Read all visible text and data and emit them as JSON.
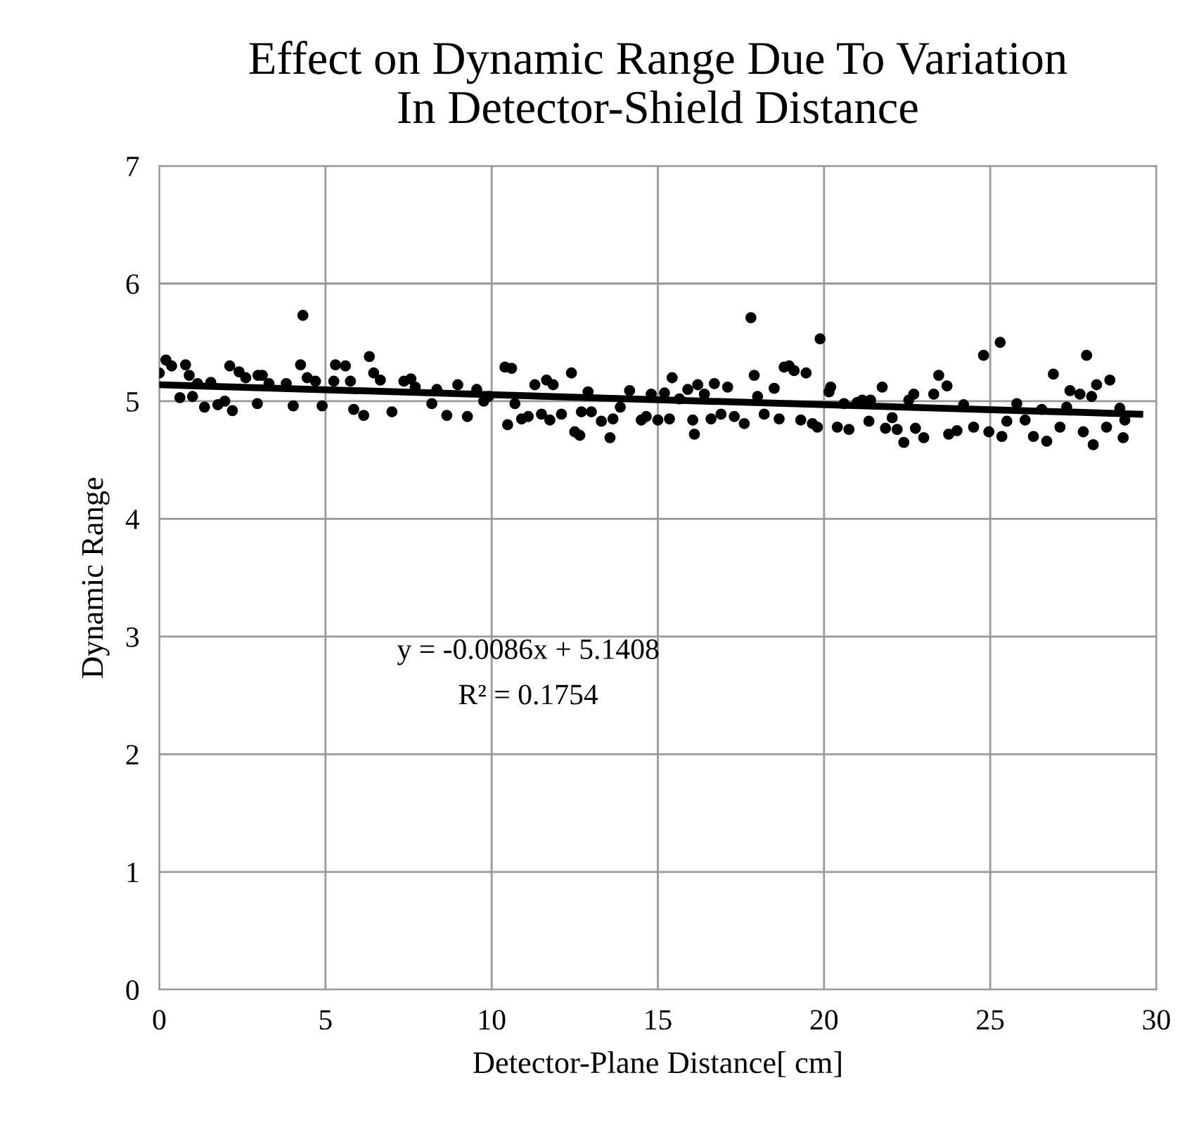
{
  "chart_data": {
    "type": "scatter",
    "title": "Effect on Dynamic Range Due To Variation\nIn Detector-Shield Distance",
    "xlabel": "Detector-Plane Distance[ cm]",
    "ylabel": "Dynamic Range",
    "xlim": [
      0,
      30
    ],
    "xticks": [
      0,
      5,
      10,
      15,
      20,
      25,
      30
    ],
    "ylim": [
      0,
      7
    ],
    "yticks": [
      0,
      1,
      2,
      3,
      4,
      5,
      6,
      7
    ],
    "grid": true,
    "marker": "circle",
    "annotations": [
      "y = -0.0086x + 5.1408",
      "R² = 0.1754"
    ],
    "series": [
      {
        "color": "#000000",
        "x": [
          0,
          0.2,
          0.37,
          0.62,
          0.79,
          0.9,
          1.0,
          1.15,
          1.36,
          1.55,
          1.76,
          1.97,
          2.12,
          2.2,
          2.4,
          2.6,
          2.95,
          2.97,
          3.1,
          3.3,
          3.82,
          4.03,
          4.25,
          4.32,
          4.45,
          4.7,
          4.9,
          5.25,
          5.3,
          5.6,
          5.75,
          5.85,
          6.15,
          6.32,
          6.45,
          6.65,
          7.0,
          7.36,
          7.57,
          7.7,
          8.2,
          8.35,
          8.65,
          8.98,
          9.27,
          9.55,
          9.76,
          9.91,
          10.4,
          10.48,
          10.6,
          10.7,
          10.9,
          11.1,
          11.3,
          11.5,
          11.65,
          11.75,
          11.85,
          12.1,
          12.4,
          12.5,
          12.65,
          12.7,
          12.9,
          13.0,
          13.3,
          13.56,
          13.65,
          13.87,
          14.15,
          14.5,
          14.65,
          14.8,
          15.0,
          15.2,
          15.35,
          15.43,
          15.65,
          15.9,
          16.05,
          16.1,
          16.2,
          16.4,
          16.6,
          16.7,
          16.9,
          17.1,
          17.3,
          17.6,
          17.8,
          17.9,
          18.0,
          18.2,
          18.5,
          18.65,
          18.8,
          18.95,
          19.1,
          19.3,
          19.46,
          19.65,
          19.8,
          19.88,
          20.15,
          20.2,
          20.4,
          20.6,
          20.75,
          21.0,
          21.15,
          21.35,
          21.4,
          21.75,
          21.85,
          22.05,
          22.2,
          22.4,
          22.55,
          22.7,
          22.75,
          23.0,
          23.3,
          23.45,
          23.7,
          23.75,
          24.0,
          24.2,
          24.5,
          24.8,
          24.96,
          25.3,
          25.35,
          25.5,
          25.8,
          26.05,
          26.3,
          26.55,
          26.7,
          26.9,
          27.1,
          27.3,
          27.4,
          27.7,
          27.8,
          27.9,
          28.05,
          28.1,
          28.2,
          28.5,
          28.6,
          28.9,
          29.0,
          29.05
        ],
        "values": [
          5.24,
          5.35,
          5.3,
          5.03,
          5.31,
          5.22,
          5.04,
          5.15,
          4.95,
          5.16,
          4.97,
          5.0,
          5.3,
          4.92,
          5.25,
          5.2,
          4.98,
          5.22,
          5.22,
          5.15,
          5.15,
          4.96,
          5.31,
          5.73,
          5.2,
          5.17,
          4.96,
          5.17,
          5.31,
          5.3,
          5.17,
          4.93,
          4.88,
          5.38,
          5.24,
          5.18,
          4.91,
          5.17,
          5.19,
          5.12,
          4.98,
          5.1,
          4.88,
          5.14,
          4.87,
          5.1,
          5.0,
          5.04,
          5.29,
          4.8,
          5.28,
          4.98,
          4.85,
          4.87,
          5.14,
          4.89,
          5.18,
          4.84,
          5.14,
          4.89,
          5.24,
          4.74,
          4.71,
          4.91,
          5.08,
          4.91,
          4.83,
          4.69,
          4.85,
          4.95,
          5.09,
          4.84,
          4.87,
          5.06,
          4.84,
          5.07,
          4.85,
          5.2,
          5.02,
          5.1,
          4.84,
          4.72,
          5.14,
          5.06,
          4.85,
          5.15,
          4.89,
          5.12,
          4.87,
          4.81,
          5.71,
          5.22,
          5.04,
          4.89,
          5.11,
          4.85,
          5.29,
          5.3,
          5.26,
          4.84,
          5.24,
          4.81,
          4.78,
          5.53,
          5.08,
          5.12,
          4.78,
          4.98,
          4.76,
          4.99,
          5.01,
          4.83,
          5.01,
          5.12,
          4.77,
          4.86,
          4.76,
          4.65,
          5.01,
          5.06,
          4.77,
          4.69,
          5.06,
          5.22,
          5.13,
          4.72,
          4.75,
          4.97,
          4.78,
          5.39,
          4.74,
          5.5,
          4.7,
          4.83,
          4.98,
          4.84,
          4.7,
          4.93,
          4.66,
          5.23,
          4.78,
          4.95,
          5.09,
          5.06,
          4.74,
          5.39,
          5.04,
          4.63,
          5.14,
          4.78,
          5.18,
          4.94,
          4.69,
          4.84
        ]
      },
      {
        "type": "line",
        "color": "#000000",
        "marker": "none",
        "line_style": "solid",
        "x": [
          0,
          29.5
        ],
        "values": [
          5.14,
          4.89
        ]
      }
    ]
  }
}
